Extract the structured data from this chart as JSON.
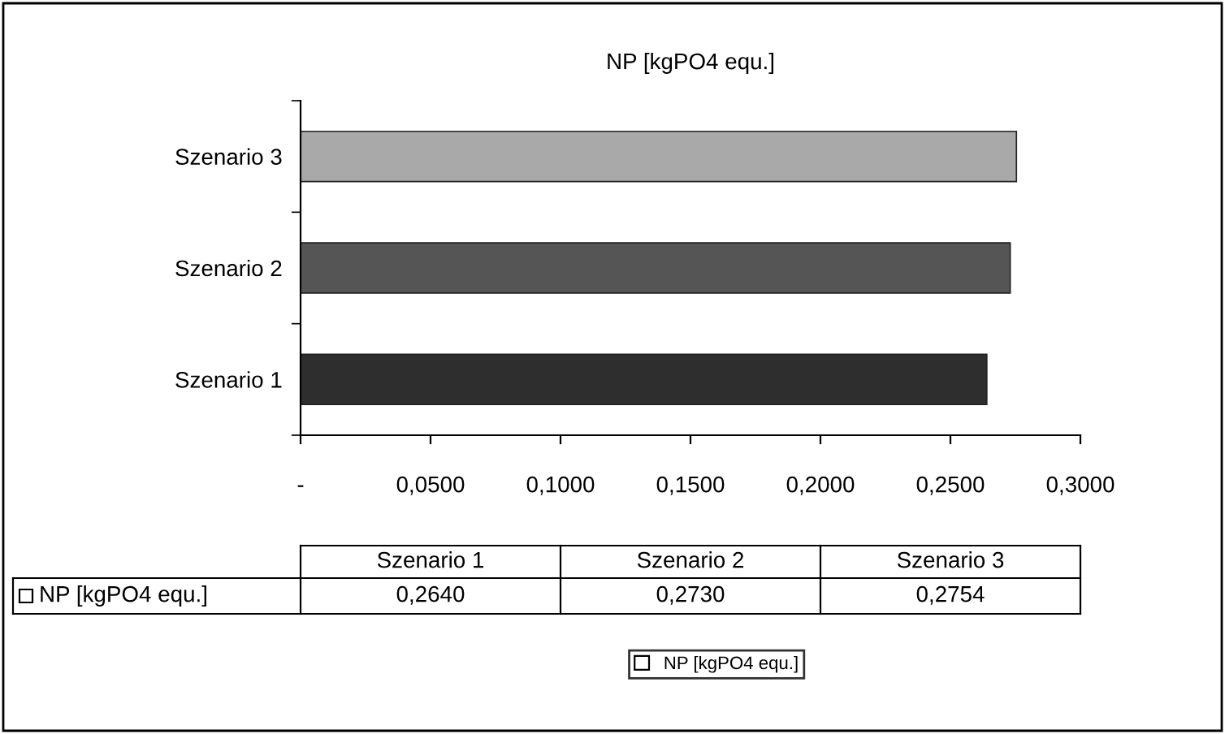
{
  "chart_data": {
    "type": "bar",
    "orientation": "horizontal",
    "title": "NP [kgPO4 equ.]",
    "categories": [
      "Szenario 3",
      "Szenario 2",
      "Szenario 1"
    ],
    "series": [
      {
        "name": "NP [kgPO4 equ.]",
        "colors": [
          "#a9a9a9",
          "#555555",
          "#2e2e2e"
        ],
        "values": [
          0.2754,
          0.273,
          0.264
        ]
      }
    ],
    "annotations": [
      "0,2640",
      "0,2730",
      "0,2754"
    ],
    "xlim": [
      0,
      0.3
    ],
    "xticks": [
      {
        "value": 0,
        "label": "-"
      },
      {
        "value": 0.05,
        "label": "0,0500"
      },
      {
        "value": 0.1,
        "label": "0,1000"
      },
      {
        "value": 0.15,
        "label": "0,1500"
      },
      {
        "value": 0.2,
        "label": "0,2000"
      },
      {
        "value": 0.25,
        "label": "0,2500"
      },
      {
        "value": 0.3,
        "label": "0,3000"
      }
    ],
    "grid": false,
    "legend": "bottom"
  }
}
